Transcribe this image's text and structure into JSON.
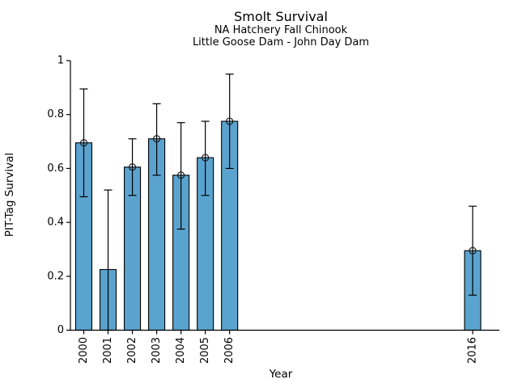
{
  "chart_data": {
    "type": "bar",
    "title": "Smolt Survival",
    "subtitle_line1": "NA Hatchery Fall Chinook",
    "subtitle_line2": "Little Goose Dam - John Day Dam",
    "xlabel": "Year",
    "ylabel": "PIT-Tag Survival",
    "ylim": [
      0,
      1
    ],
    "ytick_values": [
      0,
      0.2,
      0.4,
      0.6,
      0.8,
      1
    ],
    "ytick_labels": [
      "0",
      "0.2",
      "0.4",
      "0.6",
      "0.8",
      "1"
    ],
    "categories": [
      "2000",
      "2001",
      "2002",
      "2003",
      "2004",
      "2005",
      "2006",
      "2016"
    ],
    "values": [
      0.695,
      0.225,
      0.605,
      0.71,
      0.575,
      0.64,
      0.775,
      0.295
    ],
    "error_low": [
      0.495,
      0.0,
      0.5,
      0.575,
      0.375,
      0.5,
      0.6,
      0.13
    ],
    "error_high": [
      0.895,
      0.52,
      0.71,
      0.84,
      0.77,
      0.775,
      0.95,
      0.46
    ],
    "point_marker": [
      true,
      false,
      true,
      true,
      true,
      true,
      true,
      true
    ],
    "grid": false,
    "legend": null,
    "colors": {
      "bar_fill": "#5BA3CF",
      "bar_edge": "#000000",
      "error_bar": "#000000",
      "marker_edge": "#1a1a1a",
      "axis": "#000000",
      "background": "#ffffff"
    }
  }
}
